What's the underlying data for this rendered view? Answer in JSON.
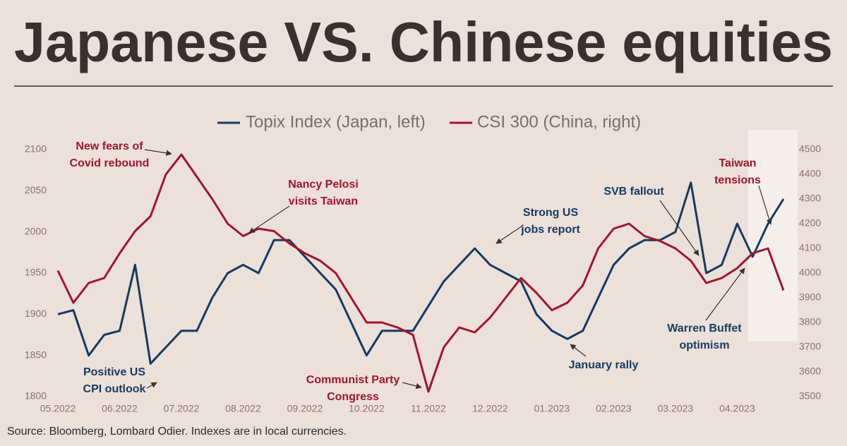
{
  "chart_data": {
    "type": "line",
    "title": "Japanese VS. Chinese equities",
    "source": "Source: Bloomberg, Lombard Odier. Indexes are in local currencies.",
    "categories": [
      "05.2022",
      null,
      null,
      null,
      "06.2022",
      null,
      null,
      null,
      "07.2022",
      null,
      null,
      null,
      "08.2022",
      null,
      null,
      null,
      "09.2022",
      null,
      null,
      null,
      "10.2022",
      null,
      null,
      null,
      "11.2022",
      null,
      null,
      null,
      "12.2022",
      null,
      null,
      null,
      "01.2023",
      null,
      null,
      null,
      "02.2023",
      null,
      null,
      null,
      "03.2023",
      null,
      null,
      null,
      "04.2023",
      null,
      null,
      null
    ],
    "series": [
      {
        "name": "Topix Index (Japan, left)",
        "color": "#173a5e",
        "axis": "y",
        "values": [
          1900,
          1905,
          1850,
          1875,
          1880,
          1960,
          1840,
          1860,
          1880,
          1880,
          1920,
          1950,
          1960,
          1950,
          1990,
          1990,
          1970,
          1950,
          1930,
          1890,
          1850,
          1880,
          1880,
          1880,
          1910,
          1940,
          1960,
          1980,
          1960,
          1950,
          1940,
          1900,
          1880,
          1870,
          1880,
          1920,
          1960,
          1980,
          1990,
          1990,
          2000,
          2060,
          1950,
          1960,
          2010,
          1970,
          2010,
          2040
        ]
      },
      {
        "name": "CSI 300 (China, right)",
        "color": "#a0152f",
        "axis": "y2",
        "values": [
          4010,
          3880,
          3960,
          3980,
          4080,
          4170,
          4230,
          4400,
          4480,
          4390,
          4300,
          4200,
          4150,
          4180,
          4170,
          4120,
          4080,
          4050,
          4000,
          3900,
          3800,
          3800,
          3780,
          3750,
          3520,
          3700,
          3780,
          3760,
          3820,
          3900,
          3980,
          3920,
          3850,
          3880,
          3950,
          4100,
          4180,
          4200,
          4150,
          4130,
          4100,
          4050,
          3960,
          3980,
          4020,
          4080,
          4100,
          3930
        ]
      }
    ],
    "ylim": [
      1800,
      2100
    ],
    "yticks": [
      1800,
      1850,
      1900,
      1950,
      2000,
      2050,
      2100
    ],
    "y2lim": [
      3500,
      4500
    ],
    "y2ticks": [
      3500,
      3600,
      3700,
      3800,
      3900,
      4000,
      4100,
      4200,
      4300,
      4400,
      4500
    ],
    "grid": false,
    "legend": "top",
    "annotations": [
      {
        "lines": [
          "New fears of",
          "Covid rebound"
        ],
        "color": "#a0152f"
      },
      {
        "lines": [
          "Nancy Pelosi",
          "visits Taiwan"
        ],
        "color": "#a0152f"
      },
      {
        "lines": [
          "Communist Party",
          "Congress"
        ],
        "color": "#a0152f"
      },
      {
        "lines": [
          "Strong US",
          "jobs report"
        ],
        "color": "#173a5e"
      },
      {
        "lines": [
          "SVB fallout"
        ],
        "color": "#173a5e"
      },
      {
        "lines": [
          "Taiwan",
          "tensions"
        ],
        "color": "#a0152f"
      },
      {
        "lines": [
          "Warren Buffet",
          "optimism"
        ],
        "color": "#173a5e"
      },
      {
        "lines": [
          "January rally"
        ],
        "color": "#173a5e"
      },
      {
        "lines": [
          "Positive US",
          "CPI outlook"
        ],
        "color": "#173a5e"
      }
    ]
  }
}
